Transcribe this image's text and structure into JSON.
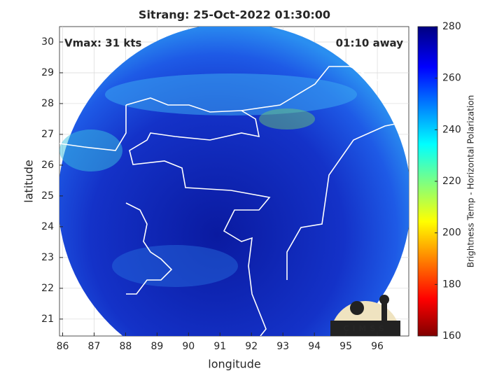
{
  "title": "Sitrang: 25-Oct-2022 01:30:00",
  "annotations": {
    "vmax": "Vmax: 31 kts",
    "away": "01:10 away"
  },
  "x_label": "longitude",
  "y_label": "latitude",
  "xlim": [
    85.9,
    97
  ],
  "xticks": [
    86,
    87,
    88,
    89,
    90,
    91,
    92,
    93,
    94,
    95,
    96
  ],
  "ylim": [
    20.45,
    30.5
  ],
  "yticks": [
    21,
    22,
    23,
    24,
    25,
    26,
    27,
    28,
    29,
    30
  ],
  "grid": true,
  "colorbar": {
    "label": "Brightness Temp - Horizontal Polarization",
    "clim": [
      160,
      280
    ],
    "ticks": [
      160,
      180,
      200,
      220,
      240,
      260,
      280
    ]
  },
  "logo": "CIMSS"
}
